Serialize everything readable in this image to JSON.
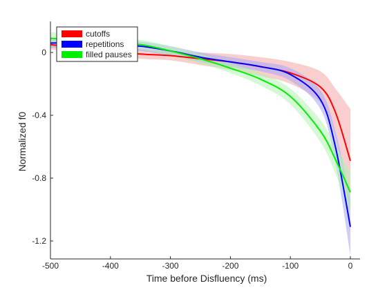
{
  "chart_data": {
    "type": "line",
    "title": "",
    "xlabel": "Time before Disfluency (ms)",
    "ylabel": "Normalized f0",
    "xlim": [
      -500,
      0
    ],
    "ylim": [
      -1.3,
      0.2
    ],
    "xticks": [
      -500,
      -400,
      -300,
      -200,
      -100,
      0
    ],
    "xtick_labels": [
      "-500",
      "-400",
      "-300",
      "-200",
      "-100",
      "0"
    ],
    "yticks": [
      0,
      -0.4,
      -0.8,
      -1.2
    ],
    "ytick_labels": [
      "0",
      "-0.4",
      "-0.8",
      "-1.2"
    ],
    "grid": false,
    "legend_position": "top-left",
    "x": [
      -500,
      -450,
      -400,
      -350,
      -300,
      -250,
      -200,
      -150,
      -100,
      -50,
      -25,
      0
    ],
    "series": [
      {
        "name": "cutoffs",
        "color": "#ff0000",
        "band_color": "#f4a6a6",
        "values": [
          0.05,
          0.03,
          0.01,
          -0.01,
          -0.02,
          -0.04,
          -0.06,
          -0.09,
          -0.13,
          -0.22,
          -0.38,
          -0.69
        ],
        "band_width": [
          0.03,
          0.03,
          0.03,
          0.03,
          0.03,
          0.04,
          0.05,
          0.06,
          0.07,
          0.1,
          0.15,
          0.33
        ]
      },
      {
        "name": "repetitions",
        "color": "#0000ff",
        "band_color": "#a6a6f4",
        "values": [
          0.06,
          0.06,
          0.05,
          0.04,
          0.01,
          -0.03,
          -0.06,
          -0.09,
          -0.14,
          -0.3,
          -0.6,
          -1.11
        ],
        "band_width": [
          0.03,
          0.03,
          0.03,
          0.03,
          0.03,
          0.03,
          0.03,
          0.03,
          0.04,
          0.06,
          0.1,
          0.18
        ]
      },
      {
        "name": "filled pauses",
        "color": "#00ee00",
        "band_color": "#b3f2b3",
        "values": [
          0.09,
          0.08,
          0.06,
          0.05,
          0.01,
          -0.04,
          -0.1,
          -0.17,
          -0.28,
          -0.5,
          -0.68,
          -0.89
        ],
        "band_width": [
          0.04,
          0.03,
          0.03,
          0.03,
          0.03,
          0.03,
          0.03,
          0.04,
          0.05,
          0.07,
          0.09,
          0.13
        ]
      }
    ]
  }
}
